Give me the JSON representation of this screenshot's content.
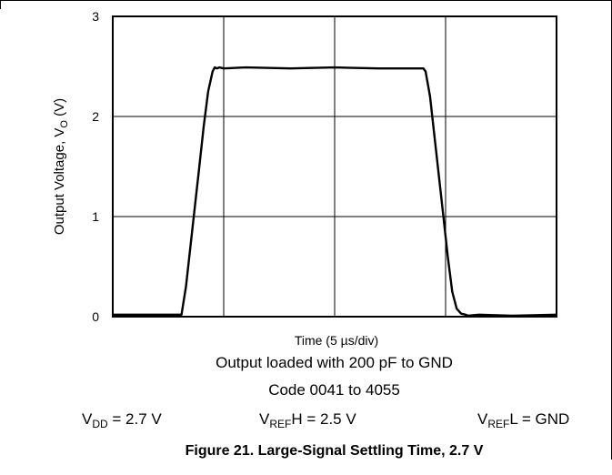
{
  "chart_data": {
    "type": "line",
    "title": "",
    "xlabel": "Time (5 µs/div)",
    "ylabel": "Output Voltage, VO (V)",
    "ylabel_main": "Output Voltage, V",
    "ylabel_sub": "O",
    "ylabel_unit": " (V)",
    "xlim": [
      0,
      20
    ],
    "ylim": [
      0,
      3
    ],
    "x_divisions": 4,
    "x_unit": "µs",
    "grid": true,
    "yticks": [
      "0",
      "1",
      "2",
      "3"
    ],
    "series": [
      {
        "x": [
          0,
          3.1,
          3.3,
          3.5,
          3.7,
          3.9,
          4.1,
          4.3,
          4.5,
          4.6,
          4.7,
          4.8,
          5.0,
          6.0,
          8.0,
          10.0,
          12.0,
          14.0,
          14.1,
          14.3,
          14.5,
          14.7,
          14.9,
          15.1,
          15.3,
          15.5,
          15.7,
          15.9,
          16.0,
          16.5,
          18.0,
          20.0
        ],
        "y": [
          0.02,
          0.02,
          0.3,
          0.7,
          1.1,
          1.5,
          1.9,
          2.25,
          2.45,
          2.49,
          2.48,
          2.49,
          2.48,
          2.49,
          2.48,
          2.49,
          2.48,
          2.48,
          2.45,
          2.2,
          1.8,
          1.4,
          1.0,
          0.6,
          0.25,
          0.08,
          0.03,
          0.02,
          0.01,
          0.02,
          0.01,
          0.02
        ],
        "color": "#000000"
      }
    ]
  },
  "conditions": {
    "load": "Output loaded with 200 pF to GND",
    "code": "Code 0041 to 4055",
    "vdd_main": "V",
    "vdd_sub": "DD",
    "vdd_rest": " = 2.7 V",
    "vrefh_main": "V",
    "vrefh_sub": "REF",
    "vrefh_rest": "H = 2.5 V",
    "vrefl_main": "V",
    "vrefl_sub": "REF",
    "vrefl_rest": "L = GND"
  },
  "caption": "Figure 21. Large-Signal Settling Time, 2.7 V"
}
